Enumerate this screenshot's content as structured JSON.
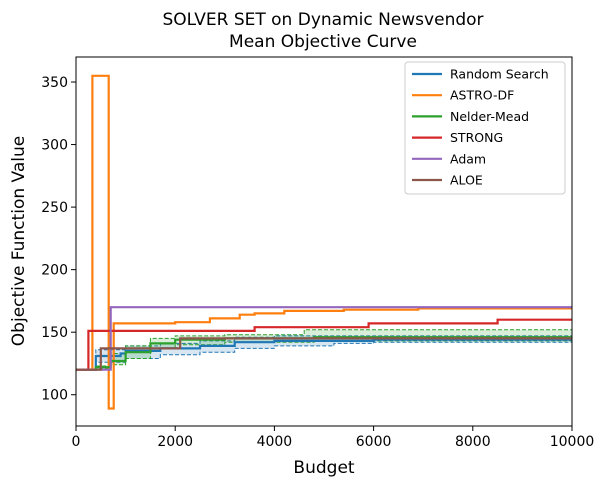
{
  "chart_data": {
    "type": "line",
    "title_lines": [
      "SOLVER SET on Dynamic Newsvendor",
      "Mean Objective Curve"
    ],
    "xlabel": "Budget",
    "ylabel": "Objective Function Value",
    "xlim": [
      0,
      10000
    ],
    "ylim": [
      75,
      370
    ],
    "xticks": [
      0,
      2000,
      4000,
      6000,
      8000,
      10000
    ],
    "xtick_labels": [
      "0",
      "2000",
      "4000",
      "6000",
      "8000",
      "10000"
    ],
    "yticks": [
      100,
      150,
      200,
      250,
      300,
      350
    ],
    "ytick_labels": [
      "100",
      "150",
      "200",
      "250",
      "300",
      "350"
    ],
    "grid": false,
    "legend_position": "top-right",
    "series": [
      {
        "name": "Random Search",
        "color": "#1f77b4",
        "steps": [
          [
            0,
            120
          ],
          [
            300,
            120
          ],
          [
            400,
            131
          ],
          [
            900,
            133
          ],
          [
            1000,
            135
          ],
          [
            1700,
            137
          ],
          [
            2500,
            139
          ],
          [
            3200,
            142
          ],
          [
            4000,
            143
          ],
          [
            6000,
            144
          ],
          [
            10000,
            144
          ]
        ],
        "ci_low": [
          [
            0,
            120
          ],
          [
            300,
            120
          ],
          [
            400,
            126
          ],
          [
            1000,
            129
          ],
          [
            1700,
            132
          ],
          [
            2500,
            134
          ],
          [
            3200,
            137
          ],
          [
            4000,
            139
          ],
          [
            5200,
            141
          ],
          [
            6000,
            142
          ],
          [
            10000,
            143
          ]
        ],
        "ci_high": [
          [
            0,
            120
          ],
          [
            300,
            120
          ],
          [
            400,
            136
          ],
          [
            1000,
            139
          ],
          [
            1700,
            141
          ],
          [
            2500,
            143
          ],
          [
            3200,
            146
          ],
          [
            4000,
            147
          ],
          [
            6000,
            147
          ],
          [
            10000,
            147
          ]
        ]
      },
      {
        "name": "ASTRO-DF",
        "color": "#ff7f0e",
        "steps": [
          [
            0,
            120
          ],
          [
            330,
            120
          ],
          [
            330,
            355
          ],
          [
            660,
            355
          ],
          [
            660,
            89
          ],
          [
            760,
            89
          ],
          [
            760,
            157
          ],
          [
            1600,
            157
          ],
          [
            2000,
            158
          ],
          [
            2700,
            161
          ],
          [
            3300,
            164
          ],
          [
            3600,
            165
          ],
          [
            4200,
            167
          ],
          [
            5400,
            168
          ],
          [
            6900,
            169
          ],
          [
            10000,
            169
          ]
        ]
      },
      {
        "name": "Nelder-Mead",
        "color": "#2ca02c",
        "steps": [
          [
            0,
            120
          ],
          [
            250,
            120
          ],
          [
            400,
            122
          ],
          [
            700,
            127
          ],
          [
            1000,
            134
          ],
          [
            1500,
            141
          ],
          [
            2000,
            144
          ],
          [
            3000,
            145
          ],
          [
            4800,
            146
          ],
          [
            10000,
            146
          ]
        ],
        "ci_low": [
          [
            0,
            120
          ],
          [
            250,
            120
          ],
          [
            400,
            121
          ],
          [
            700,
            124
          ],
          [
            1000,
            129
          ],
          [
            1500,
            137
          ],
          [
            2000,
            140
          ],
          [
            3000,
            142
          ],
          [
            4800,
            143
          ],
          [
            10000,
            143
          ]
        ],
        "ci_high": [
          [
            0,
            120
          ],
          [
            250,
            120
          ],
          [
            400,
            123
          ],
          [
            700,
            133
          ],
          [
            1000,
            139
          ],
          [
            1500,
            145
          ],
          [
            2000,
            147
          ],
          [
            3000,
            148
          ],
          [
            4600,
            152
          ],
          [
            10000,
            152
          ]
        ]
      },
      {
        "name": "STRONG",
        "color": "#d62728",
        "steps": [
          [
            0,
            120
          ],
          [
            250,
            120
          ],
          [
            250,
            151
          ],
          [
            3600,
            151
          ],
          [
            3600,
            154
          ],
          [
            5900,
            154
          ],
          [
            5900,
            157
          ],
          [
            8500,
            157
          ],
          [
            8500,
            160
          ],
          [
            10000,
            160
          ]
        ]
      },
      {
        "name": "Adam",
        "color": "#9467bd",
        "steps": [
          [
            0,
            120
          ],
          [
            700,
            120
          ],
          [
            700,
            170
          ],
          [
            10000,
            170
          ]
        ]
      },
      {
        "name": "ALOE",
        "color": "#8c564b",
        "steps": [
          [
            0,
            120
          ],
          [
            500,
            120
          ],
          [
            500,
            137
          ],
          [
            2100,
            145
          ],
          [
            10000,
            145
          ]
        ]
      }
    ]
  }
}
